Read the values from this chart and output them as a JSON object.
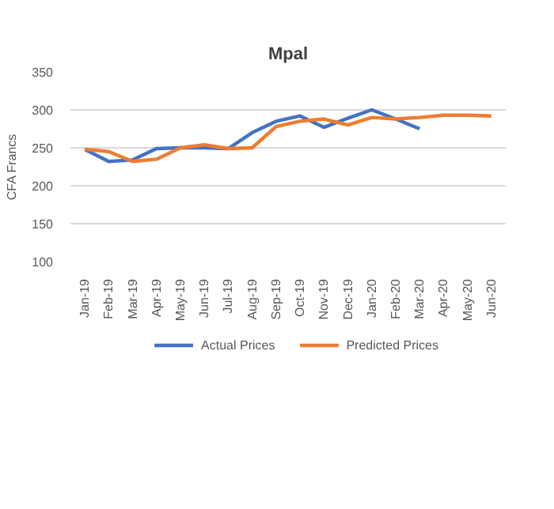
{
  "chart_data": {
    "type": "line",
    "title": "Mpal",
    "ylabel": "CFA Francs",
    "categories": [
      "Jan-19",
      "Feb-19",
      "Mar-19",
      "Apr-19",
      "May-19",
      "Jun-19",
      "Jul-19",
      "Aug-19",
      "Sep-19",
      "Oct-19",
      "Nov-19",
      "Dec-19",
      "Jan-20",
      "Feb-20",
      "Mar-20",
      "Apr-20",
      "May-20",
      "Jun-20"
    ],
    "series": [
      {
        "name": "Actual Prices",
        "color": "#4472c4",
        "values": [
          248,
          232,
          234,
          249,
          250,
          250,
          249,
          270,
          285,
          292,
          277,
          289,
          300,
          288,
          275,
          null,
          null,
          null
        ]
      },
      {
        "name": "Predicted Prices",
        "color": "#ed7d31",
        "values": [
          248,
          245,
          232,
          235,
          250,
          254,
          249,
          250,
          278,
          285,
          288,
          280,
          290,
          288,
          290,
          293,
          293,
          292
        ]
      }
    ],
    "ylim": [
      100,
      350
    ],
    "yticks": [
      100,
      150,
      200,
      250,
      300,
      350
    ],
    "grid": "y",
    "legend": "bottom",
    "marker": "none",
    "line_style": "solid"
  }
}
